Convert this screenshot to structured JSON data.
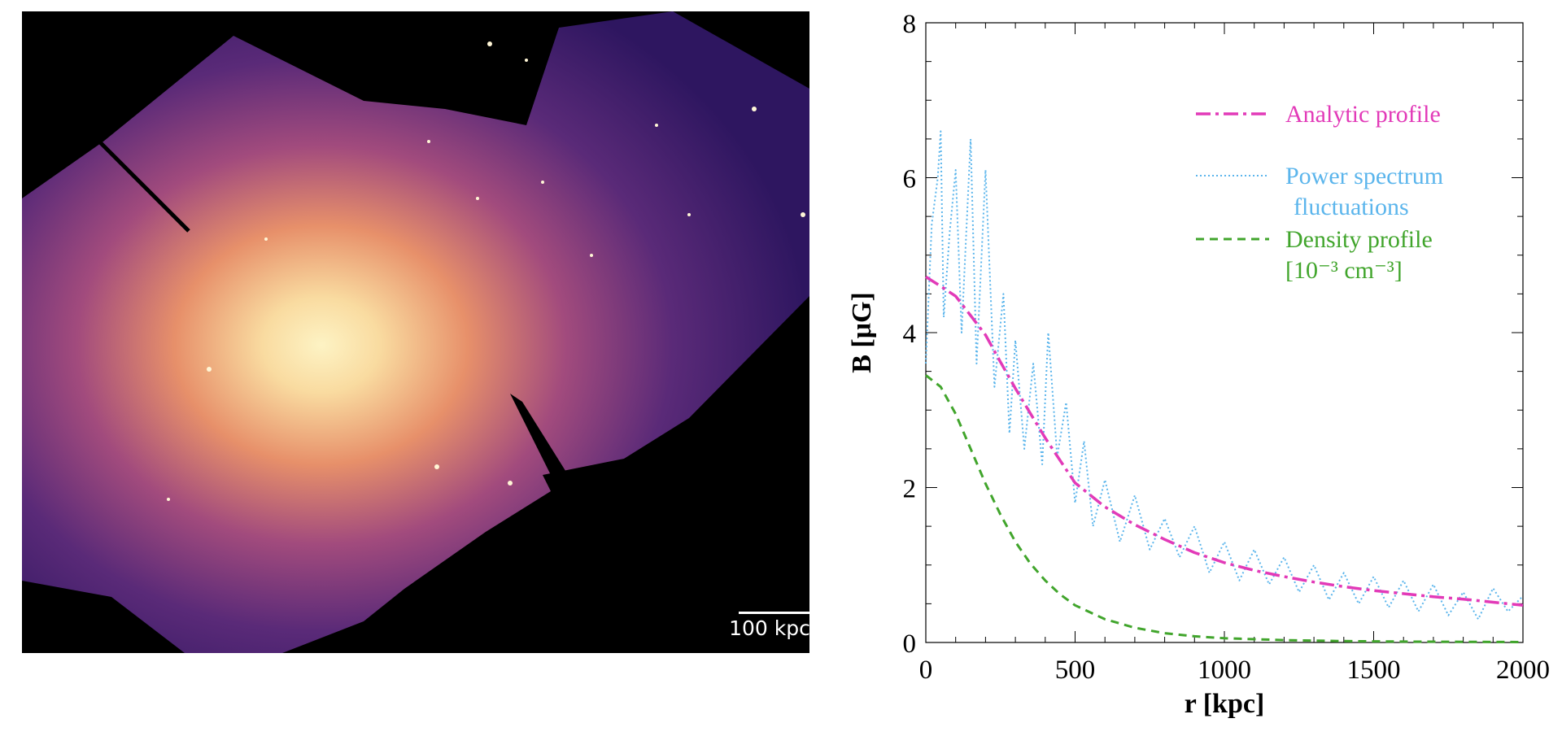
{
  "image_panel": {
    "scalebar_label": "100 kpc"
  },
  "chart_data": {
    "type": "line",
    "xlabel": "r [kpc]",
    "ylabel": "B [μG]",
    "xlim": [
      0,
      2000
    ],
    "ylim": [
      0,
      8
    ],
    "xticks": [
      0,
      500,
      1000,
      1500,
      2000
    ],
    "yticks": [
      0,
      2,
      4,
      6,
      8
    ],
    "legend_position": "top-right",
    "series": [
      {
        "name": "Analytic profile",
        "style": "dash-dot",
        "color": "#e23ab8",
        "x": [
          0,
          50,
          100,
          150,
          200,
          250,
          300,
          350,
          400,
          450,
          500,
          600,
          700,
          800,
          900,
          1000,
          1100,
          1200,
          1300,
          1400,
          1500,
          1600,
          1700,
          1800,
          1900,
          2000
        ],
        "y": [
          4.72,
          4.6,
          4.47,
          4.22,
          3.97,
          3.62,
          3.28,
          2.96,
          2.64,
          2.35,
          2.06,
          1.75,
          1.52,
          1.33,
          1.16,
          1.03,
          0.93,
          0.85,
          0.78,
          0.72,
          0.67,
          0.63,
          0.59,
          0.56,
          0.52,
          0.48
        ]
      },
      {
        "name": "Power spectrum\nfluctuations",
        "legend_lines": [
          "Power spectrum",
          "fluctuations"
        ],
        "style": "dotted",
        "color": "#5bb5ec",
        "x": [
          0,
          20,
          40,
          50,
          60,
          80,
          100,
          120,
          150,
          170,
          200,
          230,
          260,
          280,
          300,
          330,
          360,
          390,
          410,
          440,
          470,
          500,
          530,
          560,
          600,
          650,
          700,
          750,
          800,
          850,
          900,
          950,
          1000,
          1050,
          1100,
          1150,
          1200,
          1250,
          1300,
          1350,
          1400,
          1450,
          1500,
          1550,
          1600,
          1650,
          1700,
          1750,
          1800,
          1850,
          1900,
          1950,
          2000
        ],
        "y": [
          3.6,
          5.4,
          6.0,
          6.6,
          4.2,
          5.3,
          6.1,
          4.0,
          6.5,
          3.6,
          6.1,
          3.3,
          4.5,
          2.7,
          3.9,
          2.5,
          3.6,
          2.3,
          4.0,
          2.4,
          3.1,
          1.8,
          2.6,
          1.5,
          2.1,
          1.3,
          1.9,
          1.2,
          1.6,
          1.1,
          1.5,
          0.9,
          1.3,
          0.8,
          1.2,
          0.75,
          1.1,
          0.65,
          1.0,
          0.55,
          0.9,
          0.5,
          0.85,
          0.45,
          0.8,
          0.4,
          0.75,
          0.35,
          0.65,
          0.3,
          0.7,
          0.4,
          0.6
        ]
      },
      {
        "name": "Density profile\n[10⁻³ cm⁻³]",
        "legend_lines": [
          "Density profile",
          "[10⁻³ cm⁻³]"
        ],
        "style": "dashed",
        "color": "#41a52c",
        "x": [
          0,
          50,
          100,
          150,
          200,
          250,
          300,
          350,
          400,
          450,
          500,
          600,
          700,
          800,
          900,
          1000,
          1200,
          1400,
          1600,
          1800,
          2000
        ],
        "y": [
          3.45,
          3.3,
          2.95,
          2.5,
          2.05,
          1.65,
          1.3,
          1.02,
          0.8,
          0.62,
          0.48,
          0.3,
          0.19,
          0.12,
          0.08,
          0.055,
          0.03,
          0.018,
          0.012,
          0.008,
          0.005
        ]
      }
    ]
  }
}
